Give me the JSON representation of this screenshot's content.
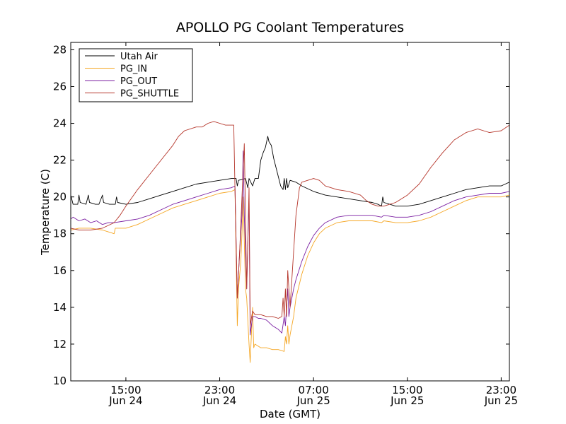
{
  "chart_data": {
    "type": "line",
    "title": "APOLLO PG Coolant Temperatures",
    "xlabel": "Date (GMT)",
    "ylabel": "Temperature (C)",
    "xlim": [
      10.3,
      47.7
    ],
    "ylim": [
      10,
      28.4
    ],
    "x_unit": "hours since 00:00 Jun 24 (GMT)",
    "yticks": [
      10,
      12,
      14,
      16,
      18,
      20,
      22,
      24,
      26,
      28
    ],
    "xticks": [
      {
        "x": 15,
        "time": "15:00",
        "date": "Jun 24"
      },
      {
        "x": 23,
        "time": "23:00",
        "date": "Jun 24"
      },
      {
        "x": 31,
        "time": "07:00",
        "date": "Jun 25"
      },
      {
        "x": 39,
        "time": "15:00",
        "date": "Jun 25"
      },
      {
        "x": 47,
        "time": "23:00",
        "date": "Jun 25"
      }
    ],
    "legend_position": "top-left",
    "series": [
      {
        "name": "Utah Air",
        "color": "#000000",
        "points": [
          [
            10.3,
            20.1
          ],
          [
            10.5,
            19.6
          ],
          [
            10.9,
            19.6
          ],
          [
            11.0,
            20.1
          ],
          [
            11.1,
            19.7
          ],
          [
            11.6,
            19.6
          ],
          [
            11.8,
            20.1
          ],
          [
            11.9,
            19.7
          ],
          [
            12.4,
            19.6
          ],
          [
            12.7,
            19.6
          ],
          [
            13.0,
            20.1
          ],
          [
            13.1,
            19.7
          ],
          [
            13.6,
            19.6
          ],
          [
            14.1,
            19.6
          ],
          [
            14.2,
            20.0
          ],
          [
            14.3,
            19.7
          ],
          [
            15.0,
            19.6
          ],
          [
            16.0,
            19.7
          ],
          [
            17.0,
            19.9
          ],
          [
            18.0,
            20.1
          ],
          [
            19.0,
            20.3
          ],
          [
            20.0,
            20.5
          ],
          [
            21.0,
            20.7
          ],
          [
            22.0,
            20.8
          ],
          [
            23.0,
            20.9
          ],
          [
            24.0,
            21.0
          ],
          [
            24.4,
            21.0
          ],
          [
            24.5,
            20.6
          ],
          [
            24.6,
            20.9
          ],
          [
            25.2,
            21.0
          ],
          [
            25.4,
            20.5
          ],
          [
            25.5,
            21.0
          ],
          [
            25.8,
            20.6
          ],
          [
            26.0,
            21.0
          ],
          [
            26.3,
            21.0
          ],
          [
            26.5,
            22.0
          ],
          [
            26.7,
            22.4
          ],
          [
            26.9,
            22.7
          ],
          [
            27.1,
            23.3
          ],
          [
            27.2,
            23.0
          ],
          [
            27.4,
            22.8
          ],
          [
            27.6,
            22.1
          ],
          [
            27.8,
            21.6
          ],
          [
            28.0,
            21.1
          ],
          [
            28.2,
            20.6
          ],
          [
            28.4,
            20.4
          ],
          [
            28.5,
            21.0
          ],
          [
            28.6,
            20.4
          ],
          [
            28.7,
            21.0
          ],
          [
            28.8,
            20.5
          ],
          [
            29.0,
            20.9
          ],
          [
            29.5,
            20.8
          ],
          [
            30.0,
            20.6
          ],
          [
            31.0,
            20.3
          ],
          [
            32.0,
            20.1
          ],
          [
            33.0,
            20.0
          ],
          [
            34.0,
            19.9
          ],
          [
            35.0,
            19.8
          ],
          [
            36.0,
            19.7
          ],
          [
            36.5,
            19.6
          ],
          [
            36.8,
            19.5
          ],
          [
            36.9,
            20.0
          ],
          [
            37.0,
            19.7
          ],
          [
            37.5,
            19.6
          ],
          [
            38.0,
            19.5
          ],
          [
            39.0,
            19.5
          ],
          [
            40.0,
            19.6
          ],
          [
            41.0,
            19.8
          ],
          [
            42.0,
            20.0
          ],
          [
            43.0,
            20.2
          ],
          [
            44.0,
            20.4
          ],
          [
            45.0,
            20.5
          ],
          [
            46.0,
            20.6
          ],
          [
            47.0,
            20.6
          ],
          [
            47.7,
            20.8
          ]
        ]
      },
      {
        "name": "PG_IN",
        "color": "#f5a623",
        "points": [
          [
            10.3,
            18.2
          ],
          [
            11.0,
            18.3
          ],
          [
            12.0,
            18.3
          ],
          [
            13.0,
            18.2
          ],
          [
            13.5,
            18.1
          ],
          [
            14.0,
            18.0
          ],
          [
            14.1,
            18.3
          ],
          [
            15.0,
            18.3
          ],
          [
            16.0,
            18.5
          ],
          [
            17.0,
            18.8
          ],
          [
            18.0,
            19.1
          ],
          [
            19.0,
            19.4
          ],
          [
            20.0,
            19.6
          ],
          [
            21.0,
            19.8
          ],
          [
            22.0,
            20.0
          ],
          [
            23.0,
            20.2
          ],
          [
            24.0,
            20.3
          ],
          [
            24.3,
            20.4
          ],
          [
            24.5,
            13.0
          ],
          [
            24.6,
            15.0
          ],
          [
            24.8,
            16.5
          ],
          [
            24.9,
            18.0
          ],
          [
            25.0,
            20.0
          ],
          [
            25.2,
            15.0
          ],
          [
            25.3,
            14.5
          ],
          [
            25.5,
            12.0
          ],
          [
            25.6,
            11.0
          ],
          [
            25.8,
            14.0
          ],
          [
            25.9,
            11.8
          ],
          [
            26.0,
            12.0
          ],
          [
            26.5,
            11.8
          ],
          [
            27.0,
            11.8
          ],
          [
            27.5,
            11.7
          ],
          [
            28.0,
            11.7
          ],
          [
            28.5,
            11.6
          ],
          [
            28.6,
            12.4
          ],
          [
            28.7,
            12.0
          ],
          [
            28.8,
            13.0
          ],
          [
            28.9,
            12.0
          ],
          [
            29.0,
            12.5
          ],
          [
            29.3,
            13.5
          ],
          [
            29.5,
            14.5
          ],
          [
            30.0,
            15.8
          ],
          [
            30.5,
            16.8
          ],
          [
            31.0,
            17.5
          ],
          [
            31.5,
            18.0
          ],
          [
            32.0,
            18.3
          ],
          [
            33.0,
            18.6
          ],
          [
            34.0,
            18.7
          ],
          [
            35.0,
            18.7
          ],
          [
            36.0,
            18.7
          ],
          [
            36.8,
            18.6
          ],
          [
            37.0,
            18.7
          ],
          [
            38.0,
            18.6
          ],
          [
            39.0,
            18.6
          ],
          [
            40.0,
            18.7
          ],
          [
            41.0,
            18.9
          ],
          [
            42.0,
            19.2
          ],
          [
            43.0,
            19.5
          ],
          [
            44.0,
            19.8
          ],
          [
            45.0,
            20.0
          ],
          [
            46.0,
            20.0
          ],
          [
            47.0,
            20.0
          ],
          [
            47.7,
            20.1
          ]
        ]
      },
      {
        "name": "PG_OUT",
        "color": "#7b1fa2",
        "points": [
          [
            10.3,
            18.8
          ],
          [
            10.5,
            18.9
          ],
          [
            11.0,
            18.7
          ],
          [
            11.5,
            18.8
          ],
          [
            12.0,
            18.6
          ],
          [
            12.5,
            18.7
          ],
          [
            13.0,
            18.5
          ],
          [
            13.5,
            18.6
          ],
          [
            14.0,
            18.6
          ],
          [
            15.0,
            18.7
          ],
          [
            16.0,
            18.8
          ],
          [
            17.0,
            19.0
          ],
          [
            18.0,
            19.3
          ],
          [
            19.0,
            19.6
          ],
          [
            20.0,
            19.8
          ],
          [
            21.0,
            20.0
          ],
          [
            22.0,
            20.2
          ],
          [
            23.0,
            20.4
          ],
          [
            24.0,
            20.5
          ],
          [
            24.3,
            20.6
          ],
          [
            24.5,
            14.5
          ],
          [
            24.7,
            17.0
          ],
          [
            24.9,
            19.0
          ],
          [
            25.0,
            22.5
          ],
          [
            25.1,
            19.0
          ],
          [
            25.3,
            15.0
          ],
          [
            25.5,
            20.0
          ],
          [
            25.6,
            12.5
          ],
          [
            25.8,
            13.5
          ],
          [
            26.0,
            13.5
          ],
          [
            26.3,
            13.4
          ],
          [
            26.5,
            13.4
          ],
          [
            27.0,
            13.3
          ],
          [
            27.5,
            13.0
          ],
          [
            28.0,
            12.8
          ],
          [
            28.3,
            12.6
          ],
          [
            28.5,
            13.5
          ],
          [
            28.6,
            13.0
          ],
          [
            28.8,
            15.0
          ],
          [
            28.9,
            13.5
          ],
          [
            29.0,
            14.0
          ],
          [
            29.3,
            15.0
          ],
          [
            29.5,
            15.5
          ],
          [
            30.0,
            16.5
          ],
          [
            30.5,
            17.3
          ],
          [
            31.0,
            17.9
          ],
          [
            31.5,
            18.3
          ],
          [
            32.0,
            18.6
          ],
          [
            33.0,
            18.9
          ],
          [
            34.0,
            19.0
          ],
          [
            35.0,
            19.0
          ],
          [
            36.0,
            19.0
          ],
          [
            36.8,
            18.9
          ],
          [
            37.0,
            19.0
          ],
          [
            38.0,
            18.9
          ],
          [
            39.0,
            18.9
          ],
          [
            40.0,
            19.0
          ],
          [
            41.0,
            19.2
          ],
          [
            42.0,
            19.5
          ],
          [
            43.0,
            19.8
          ],
          [
            44.0,
            20.0
          ],
          [
            45.0,
            20.1
          ],
          [
            46.0,
            20.2
          ],
          [
            47.0,
            20.2
          ],
          [
            47.7,
            20.3
          ]
        ]
      },
      {
        "name": "PG_SHUTTLE",
        "color": "#b5352a",
        "points": [
          [
            10.3,
            18.3
          ],
          [
            11.0,
            18.2
          ],
          [
            12.0,
            18.2
          ],
          [
            13.0,
            18.3
          ],
          [
            14.0,
            18.6
          ],
          [
            14.5,
            19.0
          ],
          [
            15.0,
            19.5
          ],
          [
            16.0,
            20.4
          ],
          [
            17.0,
            21.2
          ],
          [
            18.0,
            22.0
          ],
          [
            19.0,
            22.8
          ],
          [
            19.5,
            23.3
          ],
          [
            20.0,
            23.6
          ],
          [
            21.0,
            23.8
          ],
          [
            21.5,
            23.8
          ],
          [
            22.0,
            24.0
          ],
          [
            22.5,
            24.1
          ],
          [
            23.0,
            24.0
          ],
          [
            23.5,
            23.9
          ],
          [
            24.0,
            23.9
          ],
          [
            24.2,
            23.9
          ],
          [
            24.3,
            20.5
          ],
          [
            24.5,
            14.5
          ],
          [
            24.7,
            17.0
          ],
          [
            24.9,
            20.0
          ],
          [
            25.1,
            22.9
          ],
          [
            25.3,
            15.0
          ],
          [
            25.5,
            20.5
          ],
          [
            25.6,
            13.0
          ],
          [
            25.8,
            13.8
          ],
          [
            26.0,
            13.6
          ],
          [
            26.5,
            13.6
          ],
          [
            27.0,
            13.5
          ],
          [
            27.5,
            13.5
          ],
          [
            28.0,
            13.4
          ],
          [
            28.3,
            13.5
          ],
          [
            28.4,
            14.5
          ],
          [
            28.5,
            13.5
          ],
          [
            28.6,
            15.0
          ],
          [
            28.7,
            13.5
          ],
          [
            28.8,
            16.0
          ],
          [
            29.0,
            14.0
          ],
          [
            29.2,
            16.0
          ],
          [
            29.5,
            19.0
          ],
          [
            29.8,
            20.5
          ],
          [
            30.0,
            20.8
          ],
          [
            31.0,
            21.0
          ],
          [
            31.5,
            20.9
          ],
          [
            32.0,
            20.6
          ],
          [
            33.0,
            20.4
          ],
          [
            34.0,
            20.3
          ],
          [
            35.0,
            20.1
          ],
          [
            35.5,
            19.8
          ],
          [
            36.0,
            19.6
          ],
          [
            36.5,
            19.5
          ],
          [
            37.0,
            19.5
          ],
          [
            37.5,
            19.6
          ],
          [
            38.0,
            19.7
          ],
          [
            39.0,
            20.1
          ],
          [
            40.0,
            20.7
          ],
          [
            41.0,
            21.6
          ],
          [
            42.0,
            22.4
          ],
          [
            43.0,
            23.1
          ],
          [
            44.0,
            23.5
          ],
          [
            44.5,
            23.6
          ],
          [
            45.0,
            23.7
          ],
          [
            45.5,
            23.6
          ],
          [
            46.0,
            23.5
          ],
          [
            47.0,
            23.6
          ],
          [
            47.7,
            23.9
          ]
        ]
      }
    ]
  }
}
